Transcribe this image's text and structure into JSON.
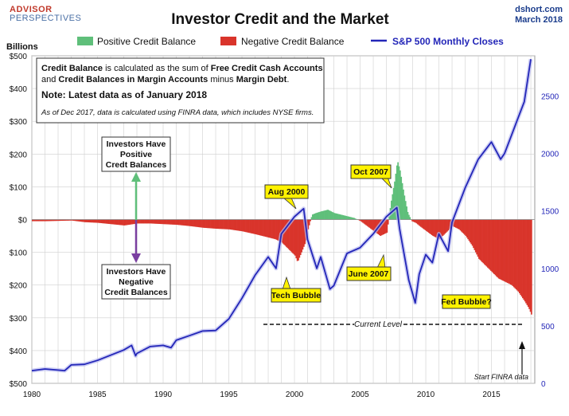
{
  "header": {
    "logo_line1": "ADVISOR",
    "logo_line2": "PERSPECTIVES",
    "source_line1": "dshort.com",
    "source_line2": "March 2018"
  },
  "chart_data": {
    "type": "area",
    "title": "Investor Credit and the Market",
    "ylabel_left": "Billions",
    "legend": {
      "positive": "Positive Credit Balance",
      "negative": "Negative Credit Balance",
      "sp500": "S&P 500 Monthly Closes",
      "placement": "top"
    },
    "x_range": [
      1980,
      2018.3
    ],
    "x_ticks": [
      "1980",
      "1985",
      "1990",
      "1995",
      "2000",
      "2005",
      "2010",
      "2015"
    ],
    "y_left_range": [
      -500,
      500
    ],
    "y_left_ticks": [
      "$500",
      "$400",
      "$300",
      "$200",
      "$100",
      "$0",
      "$100",
      "$200",
      "$300",
      "$400",
      "$500"
    ],
    "y_right_range": [
      0,
      2850
    ],
    "y_right_ticks": [
      "2500",
      "2000",
      "1500",
      "1000",
      "500",
      "0"
    ],
    "colors": {
      "positive": "#5fbf7a",
      "negative": "#d9342b",
      "sp500": "#2326b8",
      "grid": "#cfcfcf"
    },
    "credit_balance": {
      "x": [
        1980,
        1981,
        1982,
        1983,
        1984,
        1985,
        1986,
        1987,
        1988,
        1989,
        1990,
        1991,
        1992,
        1993,
        1994,
        1995,
        1996,
        1997,
        1998,
        1998.5,
        1999,
        1999.5,
        2000,
        2000.2,
        2000.5,
        2000.8,
        2001,
        2001.3,
        2001.6,
        2002,
        2002.5,
        2003,
        2003.5,
        2004,
        2004.5,
        2005,
        2005.5,
        2006,
        2006.5,
        2007,
        2007.3,
        2007.6,
        2007.8,
        2008,
        2008.3,
        2008.6,
        2008.9,
        2009.2,
        2009.5,
        2010,
        2010.5,
        2011,
        2011.5,
        2012,
        2012.5,
        2013,
        2013.5,
        2014,
        2014.5,
        2015,
        2015.5,
        2016,
        2016.5,
        2017,
        2017.5,
        2017.8,
        2018
      ],
      "values": [
        -5,
        -5,
        -4,
        -3,
        -8,
        -10,
        -14,
        -18,
        -12,
        -12,
        -14,
        -16,
        -20,
        -25,
        -28,
        -30,
        -36,
        -45,
        -55,
        -60,
        -70,
        -90,
        -110,
        -130,
        -100,
        -70,
        -30,
        15,
        20,
        25,
        30,
        20,
        15,
        10,
        5,
        -5,
        -20,
        -35,
        -50,
        -40,
        50,
        120,
        180,
        150,
        80,
        20,
        -5,
        -10,
        -20,
        -35,
        -50,
        -60,
        -40,
        -20,
        -30,
        -50,
        -80,
        -120,
        -140,
        -160,
        -180,
        -190,
        -200,
        -220,
        -250,
        -270,
        -290
      ]
    },
    "sp500": {
      "x": [
        1980,
        1981,
        1982,
        1982.5,
        1983,
        1984,
        1985,
        1986,
        1987,
        1987.6,
        1987.9,
        1988,
        1989,
        1990,
        1990.6,
        1991,
        1992,
        1993,
        1994,
        1995,
        1996,
        1997,
        1998,
        1998.6,
        1999,
        2000,
        2000.7,
        2001,
        2001.7,
        2002,
        2002.7,
        2003,
        2004,
        2005,
        2006,
        2007,
        2007.8,
        2008,
        2008.7,
        2009.2,
        2009.5,
        2010,
        2010.5,
        2011,
        2011.7,
        2012,
        2013,
        2014,
        2015,
        2015.7,
        2016,
        2016.5,
        2017,
        2017.5,
        2018
      ],
      "values": [
        110,
        125,
        115,
        110,
        160,
        165,
        200,
        245,
        290,
        330,
        240,
        260,
        320,
        330,
        310,
        375,
        415,
        455,
        460,
        560,
        740,
        940,
        1100,
        1000,
        1300,
        1450,
        1520,
        1250,
        1000,
        1100,
        820,
        850,
        1130,
        1180,
        1300,
        1450,
        1530,
        1350,
        900,
        700,
        950,
        1120,
        1050,
        1300,
        1150,
        1400,
        1700,
        1950,
        2100,
        1950,
        2000,
        2150,
        2300,
        2450,
        2820
      ]
    },
    "annotations": {
      "info_line1_a": "Credit Balance",
      "info_line1_b": " is calculated as the sum of ",
      "info_line1_c": "Free Credit Cash Accounts",
      "info_line2_a": "and ",
      "info_line2_b": "Credit Balances in Margin Accounts",
      "info_line2_c": " minus ",
      "info_line2_d": "Margin Debt",
      "info_line2_e": ".",
      "info_note": "Note: Latest data as of January  2018",
      "info_asof": "As of Dec 2017, data is calculated using FINRA data, which includes NYSE firms.",
      "positive_label": [
        "Investors Have",
        "Positive",
        "Credt Balances"
      ],
      "negative_label": [
        "Investors Have",
        "Negative",
        "Credit Balances"
      ],
      "aug2000": "Aug 2000",
      "oct2007": "Oct 2007",
      "tech": "Tech Bubble",
      "june2007": "June 2007",
      "fed": "Fed Bubble?",
      "current_level": "Current Level",
      "start_finra": "Start FINRA data"
    }
  }
}
